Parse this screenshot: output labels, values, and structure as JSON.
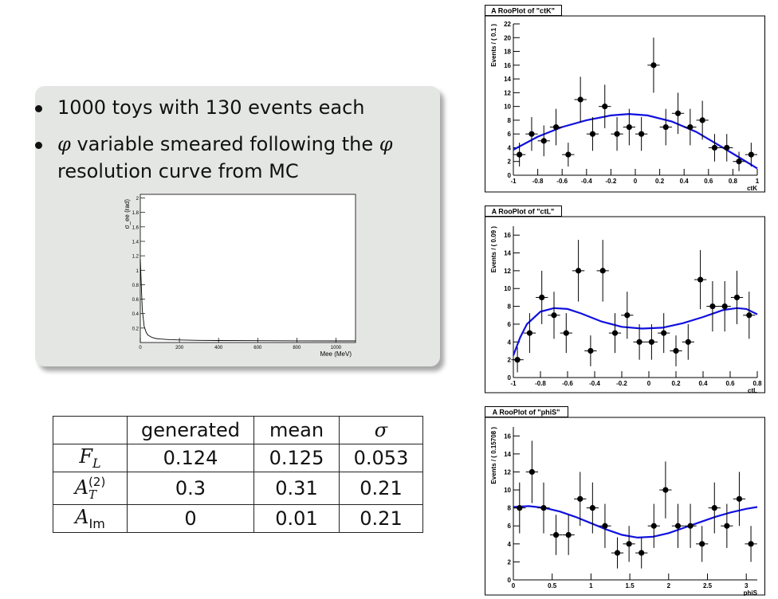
{
  "slide": {
    "bullets": [
      {
        "text": "1000 toys with 130 events each"
      },
      {
        "sym1": "φ",
        "text1": " variable smeared following the ",
        "sym2": "φ",
        "text2": "resolution curve from MC"
      }
    ]
  },
  "table": {
    "headers": [
      "",
      "generated",
      "mean",
      "σ"
    ],
    "rows": [
      {
        "label_base": "F",
        "label_sub": "L",
        "label_sup": "",
        "values": [
          "0.124",
          "0.125",
          "0.053"
        ]
      },
      {
        "label_base": "A",
        "label_sub": "T",
        "label_sup": "(2)",
        "values": [
          "0.3",
          "0.31",
          "0.21"
        ]
      },
      {
        "label_base": "A",
        "label_sub": "Im",
        "label_sup": "",
        "values": [
          "0",
          "0.01",
          "0.21"
        ]
      }
    ]
  },
  "colors": {
    "fit_line": "#1010e0",
    "points": "#000000",
    "callout_bg": "#e4e6e4"
  },
  "chart_data": [
    {
      "type": "line",
      "title": "",
      "xlabel": "Mee (MeV)",
      "ylabel": "σ_ee (rad)",
      "xlim": [
        0,
        1100
      ],
      "ylim": [
        0,
        2.05
      ],
      "xticks": [
        "0",
        "200",
        "400",
        "600",
        "800",
        "1000"
      ],
      "xtick_values": [
        0,
        200,
        400,
        600,
        800,
        1000
      ],
      "yticks": [
        "0.2",
        "0.4",
        "0.6",
        "0.8",
        "1",
        "1.2",
        "1.4",
        "1.6",
        "1.8",
        "2"
      ],
      "ytick_values": [
        0.2,
        0.4,
        0.6,
        0.8,
        1.0,
        1.2,
        1.4,
        1.6,
        1.8,
        2.0
      ],
      "series": [
        {
          "x": [
            0,
            10,
            20,
            30,
            40,
            60,
            80,
            100,
            150,
            200,
            300,
            400,
            600,
            800,
            1000,
            1100
          ],
          "y": [
            1.15,
            0.45,
            0.22,
            0.14,
            0.1,
            0.07,
            0.055,
            0.048,
            0.04,
            0.035,
            0.03,
            0.028,
            0.025,
            0.023,
            0.022,
            0.022
          ]
        }
      ]
    },
    {
      "type": "scatter",
      "title": "A RooPlot of \"ctK\"",
      "xlabel": "ctK",
      "ylabel": "Events / ( 0.1 )",
      "xlim": [
        -1,
        1
      ],
      "ylim": [
        0,
        22
      ],
      "xticks": [
        "-1",
        "-0.8",
        "-0.6",
        "-0.4",
        "-0.2",
        "0",
        "0.2",
        "0.4",
        "0.6",
        "0.8",
        "1"
      ],
      "xtick_values": [
        -1,
        -0.8,
        -0.6,
        -0.4,
        -0.2,
        0,
        0.2,
        0.4,
        0.6,
        0.8,
        1
      ],
      "yticks": [
        "0",
        "2",
        "4",
        "6",
        "8",
        "10",
        "12",
        "14",
        "16",
        "18",
        "20",
        "22"
      ],
      "ytick_values": [
        0,
        2,
        4,
        6,
        8,
        10,
        12,
        14,
        16,
        18,
        20,
        22
      ],
      "xerr": 0.05,
      "series": [
        {
          "x": [
            -0.95,
            -0.85,
            -0.75,
            -0.65,
            -0.55,
            -0.45,
            -0.35,
            -0.25,
            -0.15,
            -0.05,
            0.05,
            0.15,
            0.25,
            0.35,
            0.45,
            0.55,
            0.65,
            0.75,
            0.85,
            0.95
          ],
          "y": [
            3,
            6,
            5,
            7,
            3,
            11,
            6,
            10,
            6,
            7,
            6,
            16,
            7,
            9,
            7,
            8,
            4,
            4,
            2,
            3
          ]
        }
      ],
      "fit": {
        "x": [
          -1,
          -0.8,
          -0.6,
          -0.4,
          -0.2,
          -0.05,
          0.1,
          0.3,
          0.5,
          0.7,
          0.85,
          1.0
        ],
        "y": [
          3.7,
          5.6,
          7.0,
          8.0,
          8.7,
          8.9,
          8.7,
          7.8,
          6.3,
          4.2,
          2.6,
          1.0
        ]
      }
    },
    {
      "type": "scatter",
      "title": "A RooPlot of \"ctL\"",
      "xlabel": "ctL",
      "ylabel": "Events / ( 0.09 )",
      "xlim": [
        -1,
        0.8
      ],
      "ylim": [
        0,
        17
      ],
      "xticks": [
        "-1",
        "-0.8",
        "-0.6",
        "-0.4",
        "-0.2",
        "0",
        "0.2",
        "0.4",
        "0.6",
        "0.8"
      ],
      "xtick_values": [
        -1,
        -0.8,
        -0.6,
        -0.4,
        -0.2,
        0,
        0.2,
        0.4,
        0.6,
        0.8
      ],
      "yticks": [
        "0",
        "2",
        "4",
        "6",
        "8",
        "10",
        "12",
        "14",
        "16"
      ],
      "ytick_values": [
        0,
        2,
        4,
        6,
        8,
        10,
        12,
        14,
        16
      ],
      "xerr": 0.045,
      "series": [
        {
          "x": [
            -0.97,
            -0.88,
            -0.79,
            -0.7,
            -0.61,
            -0.52,
            -0.43,
            -0.34,
            -0.25,
            -0.16,
            -0.07,
            0.02,
            0.11,
            0.2,
            0.29,
            0.38,
            0.47,
            0.56,
            0.65,
            0.74
          ],
          "y": [
            2,
            5,
            9,
            7,
            5,
            12,
            3,
            12,
            5,
            7,
            4,
            4,
            5,
            3,
            4,
            11,
            8,
            8,
            9,
            7
          ]
        }
      ],
      "fit": {
        "x": [
          -1,
          -0.95,
          -0.9,
          -0.8,
          -0.7,
          -0.6,
          -0.5,
          -0.35,
          -0.2,
          -0.05,
          0.1,
          0.25,
          0.4,
          0.55,
          0.65,
          0.72,
          0.8
        ],
        "y": [
          2.5,
          4.5,
          6.0,
          7.4,
          7.8,
          7.7,
          7.2,
          6.3,
          5.7,
          5.5,
          5.6,
          6.1,
          6.8,
          7.6,
          7.8,
          7.7,
          7.1
        ]
      }
    },
    {
      "type": "scatter",
      "title": "A RooPlot of \"phiS\"",
      "xlabel": "phiS",
      "ylabel": "Events / ( 0.15708 )",
      "xlim": [
        0,
        3.1416
      ],
      "ylim": [
        0,
        17
      ],
      "xticks": [
        "0",
        "0.5",
        "1",
        "1.5",
        "2",
        "2.5",
        "3"
      ],
      "xtick_values": [
        0,
        0.5,
        1,
        1.5,
        2,
        2.5,
        3
      ],
      "yticks": [
        "0",
        "2",
        "4",
        "6",
        "8",
        "10",
        "12",
        "14",
        "16"
      ],
      "ytick_values": [
        0,
        2,
        4,
        6,
        8,
        10,
        12,
        14,
        16
      ],
      "xerr": 0.0785,
      "series": [
        {
          "x": [
            0.08,
            0.24,
            0.39,
            0.55,
            0.71,
            0.86,
            1.02,
            1.18,
            1.34,
            1.49,
            1.65,
            1.81,
            1.96,
            2.12,
            2.28,
            2.43,
            2.59,
            2.75,
            2.91,
            3.06
          ],
          "y": [
            8,
            12,
            8,
            5,
            5,
            9,
            8,
            6,
            3,
            4,
            3,
            6,
            10,
            6,
            6,
            4,
            8,
            6,
            9,
            4
          ]
        }
      ],
      "fit": {
        "x": [
          0,
          0.2,
          0.4,
          0.6,
          0.8,
          1.0,
          1.2,
          1.4,
          1.6,
          1.8,
          2.0,
          2.2,
          2.4,
          2.6,
          2.8,
          3.0,
          3.1416
        ],
        "y": [
          8.1,
          8.2,
          8.0,
          7.6,
          7.0,
          6.3,
          5.6,
          5.0,
          4.7,
          4.8,
          5.2,
          5.8,
          6.4,
          7.0,
          7.5,
          7.9,
          8.1
        ]
      }
    }
  ]
}
